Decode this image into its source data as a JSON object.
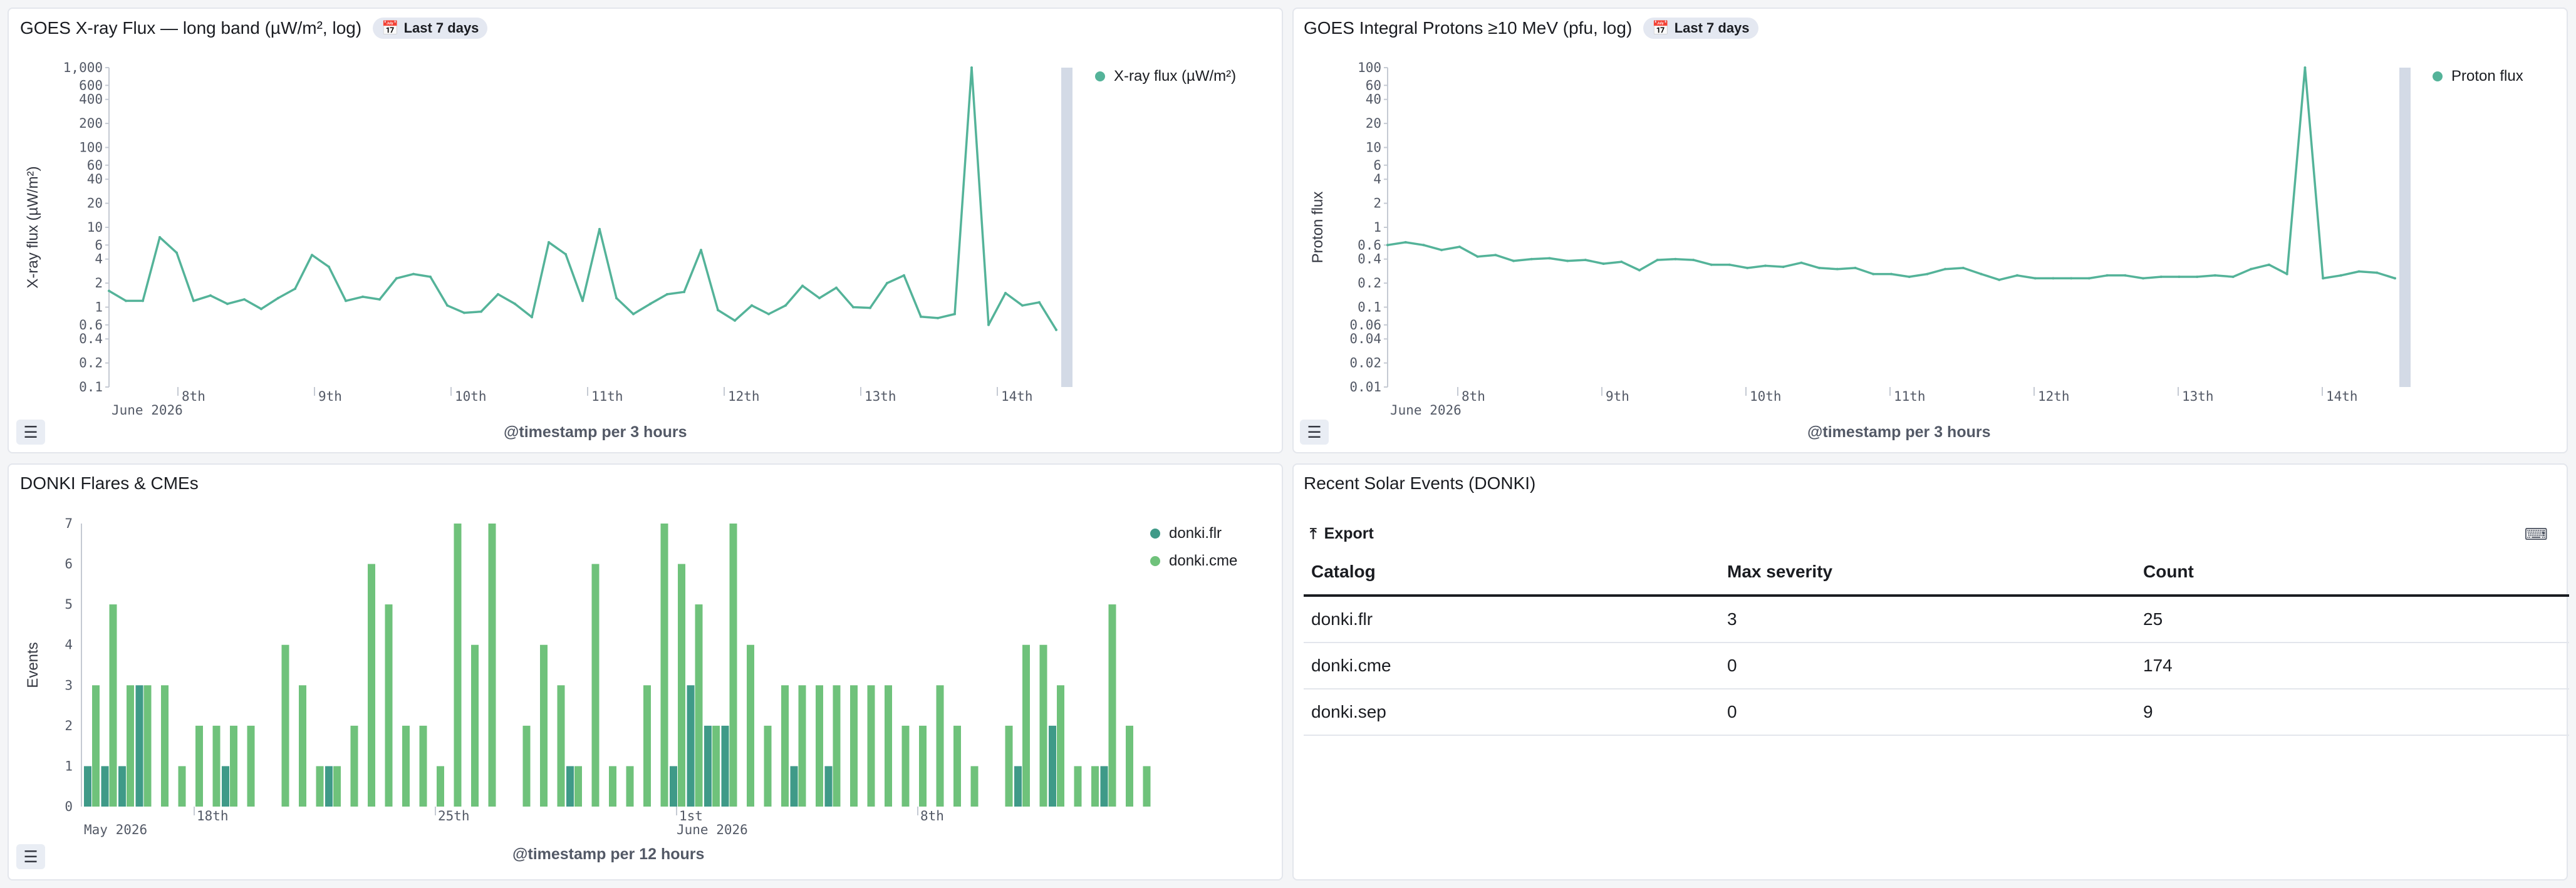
{
  "panels": {
    "xray": {
      "title": "GOES X-ray Flux — long band (µW/m², log)",
      "range_badge": "Last 7 days",
      "ylabel": "X-ray flux (µW/m²)",
      "xtitle": "@timestamp per 3 hours",
      "legend": "X-ray flux (µW/m²)",
      "date_sub": "June 2026"
    },
    "protons": {
      "title": "GOES Integral Protons ≥10 MeV (pfu, log)",
      "range_badge": "Last 7 days",
      "ylabel": "Proton flux",
      "xtitle": "@timestamp per 3 hours",
      "legend": "Proton flux",
      "date_sub": "June 2026"
    },
    "donki": {
      "title": "DONKI Flares & CMEs",
      "ylabel": "Events",
      "xtitle": "@timestamp per 12 hours",
      "legend_flr": "donki.flr",
      "legend_cme": "donki.cme",
      "date_sub1": "May 2026",
      "date_sub2": "June 2026"
    },
    "events": {
      "title": "Recent Solar Events (DONKI)",
      "export_label": "Export",
      "columns": [
        "Catalog",
        "Max severity",
        "Count"
      ],
      "rows": [
        [
          "donki.flr",
          "3",
          "25"
        ],
        [
          "donki.cme",
          "0",
          "174"
        ],
        [
          "donki.sep",
          "0",
          "9"
        ]
      ]
    }
  },
  "colors": {
    "line": "#54b399",
    "flr": "#3f9a88",
    "cme": "#6fc27b",
    "axis": "#98a2b3"
  },
  "chart_data": [
    {
      "type": "line",
      "title": "GOES X-ray Flux — long band (µW/m², log)",
      "ylabel": "X-ray flux (µW/m²)",
      "xlabel": "@timestamp per 3 hours",
      "scale": "log",
      "ylim": [
        0.1,
        1000
      ],
      "yticks": [
        "0.1",
        "0.2",
        "0.4",
        "0.6",
        "1",
        "2",
        "4",
        "6",
        "10",
        "20",
        "40",
        "60",
        "100",
        "200",
        "400",
        "600",
        "1,000"
      ],
      "xticks": [
        "8th",
        "9th",
        "10th",
        "11th",
        "12th",
        "13th",
        "14th"
      ],
      "series": [
        {
          "name": "X-ray flux (µW/m²)",
          "values": [
            1.6,
            1.2,
            1.2,
            7.5,
            4.8,
            1.2,
            1.4,
            1.1,
            1.25,
            0.95,
            1.3,
            1.7,
            4.5,
            3.2,
            1.2,
            1.35,
            1.25,
            2.3,
            2.6,
            2.4,
            1.05,
            0.85,
            0.88,
            1.45,
            1.1,
            0.75,
            6.5,
            4.6,
            1.2,
            9.5,
            1.3,
            0.82,
            1.1,
            1.45,
            1.55,
            5.2,
            0.92,
            0.68,
            1.05,
            0.82,
            1.05,
            1.85,
            1.3,
            1.75,
            1.0,
            0.98,
            2.0,
            2.5,
            0.76,
            0.73,
            0.82,
            1000,
            0.6,
            1.5,
            1.05,
            1.15,
            0.52
          ]
        }
      ]
    },
    {
      "type": "line",
      "title": "GOES Integral Protons ≥10 MeV (pfu, log)",
      "ylabel": "Proton flux",
      "xlabel": "@timestamp per 3 hours",
      "scale": "log",
      "ylim": [
        0.01,
        100
      ],
      "yticks": [
        "0.01",
        "0.02",
        "0.04",
        "0.06",
        "0.1",
        "0.2",
        "0.4",
        "0.6",
        "1",
        "2",
        "4",
        "6",
        "10",
        "20",
        "40",
        "60",
        "100"
      ],
      "xticks": [
        "8th",
        "9th",
        "10th",
        "11th",
        "12th",
        "13th",
        "14th"
      ],
      "series": [
        {
          "name": "Proton flux",
          "values": [
            0.6,
            0.65,
            0.6,
            0.52,
            0.57,
            0.43,
            0.45,
            0.38,
            0.4,
            0.41,
            0.38,
            0.39,
            0.35,
            0.37,
            0.29,
            0.39,
            0.4,
            0.39,
            0.34,
            0.34,
            0.31,
            0.33,
            0.32,
            0.36,
            0.31,
            0.3,
            0.31,
            0.26,
            0.26,
            0.24,
            0.26,
            0.3,
            0.31,
            0.26,
            0.22,
            0.25,
            0.23,
            0.23,
            0.23,
            0.23,
            0.25,
            0.25,
            0.23,
            0.24,
            0.24,
            0.24,
            0.25,
            0.24,
            0.3,
            0.34,
            0.26,
            100,
            0.23,
            0.25,
            0.28,
            0.27,
            0.23
          ]
        }
      ]
    },
    {
      "type": "bar",
      "title": "DONKI Flares & CMEs",
      "ylabel": "Events",
      "xlabel": "@timestamp per 12 hours",
      "ylim": [
        0,
        7
      ],
      "yticks": [
        "0",
        "1",
        "2",
        "3",
        "4",
        "5",
        "6",
        "7"
      ],
      "xticks": [
        "18th",
        "25th",
        "1st",
        "8th"
      ],
      "series": [
        {
          "name": "donki.flr",
          "values": [
            1,
            1,
            1,
            3,
            0,
            0,
            0,
            0,
            1,
            0,
            0,
            0,
            0,
            0,
            1,
            0,
            0,
            0,
            0,
            0,
            0,
            0,
            0,
            0,
            0,
            0,
            0,
            0,
            1,
            0,
            0,
            0,
            0,
            0,
            1,
            3,
            2,
            2,
            0,
            0,
            0,
            1,
            0,
            1,
            0,
            0,
            0,
            0,
            0,
            0,
            0,
            0,
            0,
            0,
            1,
            0,
            2,
            0,
            0,
            1,
            0,
            0
          ]
        },
        {
          "name": "donki.cme",
          "values": [
            3,
            5,
            3,
            3,
            3,
            1,
            2,
            2,
            2,
            2,
            0,
            4,
            3,
            1,
            1,
            2,
            6,
            5,
            2,
            2,
            1,
            7,
            4,
            7,
            0,
            2,
            4,
            3,
            1,
            6,
            1,
            1,
            3,
            7,
            6,
            5,
            2,
            7,
            4,
            2,
            3,
            3,
            3,
            3,
            3,
            3,
            3,
            2,
            2,
            3,
            2,
            1,
            0,
            2,
            4,
            4,
            3,
            1,
            1,
            5,
            2,
            1
          ]
        }
      ]
    }
  ]
}
